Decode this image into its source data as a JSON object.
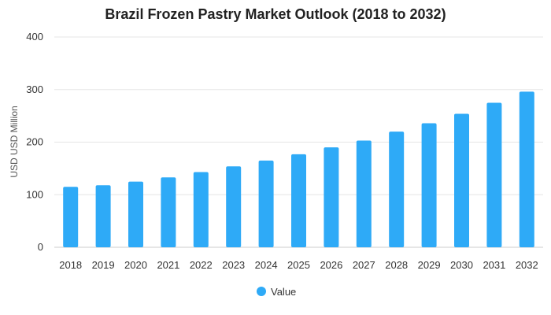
{
  "chart_data": {
    "type": "bar",
    "title": "Brazil Frozen Pastry Market Outlook (2018 to 2032)",
    "xlabel": "",
    "ylabel": "USD USD Million",
    "categories": [
      "2018",
      "2019",
      "2020",
      "2021",
      "2022",
      "2023",
      "2024",
      "2025",
      "2026",
      "2027",
      "2028",
      "2029",
      "2030",
      "2031",
      "2032"
    ],
    "series": [
      {
        "name": "Value",
        "color": "#2eaaf7",
        "values": [
          115,
          118,
          125,
          133,
          143,
          154,
          165,
          177,
          190,
          203,
          220,
          236,
          254,
          275,
          296
        ]
      }
    ],
    "ylim": [
      0,
      400
    ],
    "yticks": [
      0,
      100,
      200,
      300,
      400
    ],
    "grid": true,
    "legend_position": "bottom"
  }
}
